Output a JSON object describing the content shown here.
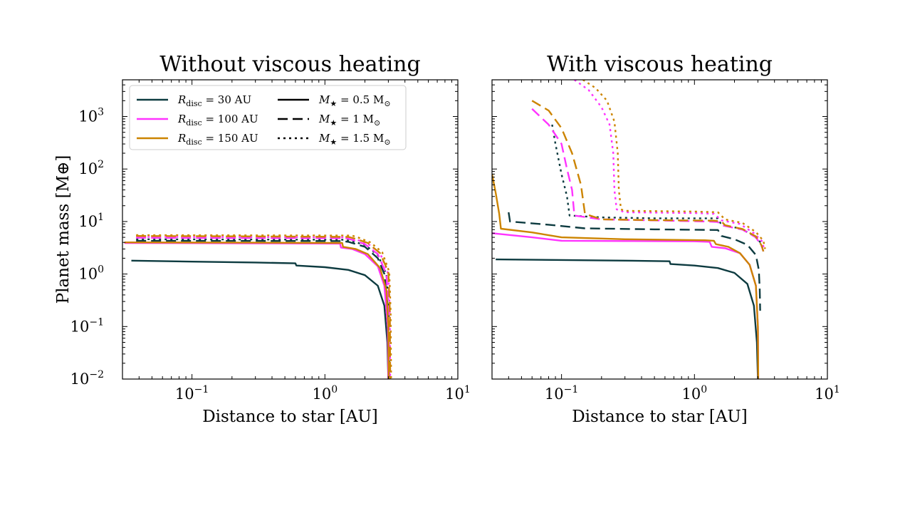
{
  "chart_data": [
    {
      "type": "line",
      "title": "Without viscous heating",
      "xlabel": "Distance to star [AU]",
      "ylabel": "Planet mass [M⊕]",
      "xscale": "log",
      "yscale": "log",
      "xlim": [
        0.03,
        10
      ],
      "ylim": [
        0.01,
        5000
      ],
      "xticks": [
        {
          "base": "10",
          "exp": "−1",
          "value": 0.1
        },
        {
          "base": "10",
          "exp": "0",
          "value": 1
        },
        {
          "base": "10",
          "exp": "1",
          "value": 10
        }
      ],
      "legend": {
        "location": "top-left",
        "disc_entries": [
          {
            "label": "R",
            "sub": "disc",
            "rest": " = 30 AU",
            "color": "#0d3b40"
          },
          {
            "label": "R",
            "sub": "disc",
            "rest": " = 100 AU",
            "color": "#ff33ff"
          },
          {
            "label": "R",
            "sub": "disc",
            "rest": " = 150 AU",
            "color": "#cc8400"
          }
        ],
        "star_entries": [
          {
            "label": "M",
            "sub": "★",
            "rest": " = 0.5 M",
            "sun": "⊙",
            "style": "solid"
          },
          {
            "label": "M",
            "sub": "★",
            "rest": " = 1 M",
            "sun": "⊙",
            "style": "dashed"
          },
          {
            "label": "M",
            "sub": "★",
            "rest": " = 1.5 M",
            "sun": "⊙",
            "style": "dotted"
          }
        ]
      },
      "series": [
        {
          "name": "R_disc=30 AU, M*=0.5",
          "color": "#0d3b40",
          "style": "solid",
          "points": [
            [
              0.035,
              1.8
            ],
            [
              0.1,
              1.72
            ],
            [
              0.3,
              1.66
            ],
            [
              0.6,
              1.6
            ],
            [
              0.61,
              1.45
            ],
            [
              1.0,
              1.35
            ],
            [
              1.5,
              1.2
            ],
            [
              2.0,
              0.95
            ],
            [
              2.5,
              0.6
            ],
            [
              2.8,
              0.25
            ],
            [
              2.95,
              0.05
            ],
            [
              3.0,
              0.01
            ]
          ]
        },
        {
          "name": "R_disc=30 AU, M*=1",
          "color": "#0d3b40",
          "style": "dashed",
          "points": [
            [
              0.038,
              4.3
            ],
            [
              0.3,
              4.28
            ],
            [
              1.35,
              4.25
            ],
            [
              1.5,
              4.1
            ],
            [
              2.0,
              3.3
            ],
            [
              2.5,
              2.0
            ],
            [
              2.8,
              1.0
            ],
            [
              2.95,
              0.3
            ],
            [
              3.02,
              0.03
            ],
            [
              3.05,
              0.01
            ]
          ]
        },
        {
          "name": "R_disc=30 AU, M*=1.5",
          "color": "#0d3b40",
          "style": "dotted",
          "points": [
            [
              0.038,
              4.6
            ],
            [
              0.3,
              4.55
            ],
            [
              1.4,
              4.5
            ],
            [
              1.6,
              4.2
            ],
            [
              2.0,
              3.6
            ],
            [
              2.5,
              2.3
            ],
            [
              2.9,
              1.0
            ],
            [
              3.02,
              0.2
            ],
            [
              3.05,
              0.01
            ]
          ]
        },
        {
          "name": "R_disc=100 AU, M*=0.5",
          "color": "#ff33ff",
          "style": "solid",
          "points": [
            [
              0.031,
              3.9
            ],
            [
              0.3,
              3.85
            ],
            [
              1.3,
              3.8
            ],
            [
              1.32,
              3.2
            ],
            [
              1.6,
              3.0
            ],
            [
              2.0,
              2.4
            ],
            [
              2.5,
              1.4
            ],
            [
              2.8,
              0.6
            ],
            [
              2.97,
              0.1
            ],
            [
              3.0,
              0.01
            ]
          ]
        },
        {
          "name": "R_disc=100 AU, M*=1",
          "color": "#ff33ff",
          "style": "dashed",
          "points": [
            [
              0.038,
              4.9
            ],
            [
              0.3,
              4.85
            ],
            [
              1.45,
              4.8
            ],
            [
              1.6,
              4.5
            ],
            [
              2.0,
              3.7
            ],
            [
              2.5,
              2.4
            ],
            [
              2.9,
              1.0
            ],
            [
              3.02,
              0.2
            ],
            [
              3.05,
              0.01
            ]
          ]
        },
        {
          "name": "R_disc=100 AU, M*=1.5",
          "color": "#ff33ff",
          "style": "dotted",
          "points": [
            [
              0.038,
              5.1
            ],
            [
              0.3,
              5.05
            ],
            [
              1.5,
              5.0
            ],
            [
              1.7,
              4.6
            ],
            [
              2.1,
              3.8
            ],
            [
              2.6,
              2.5
            ],
            [
              3.0,
              1.0
            ],
            [
              3.08,
              0.2
            ],
            [
              3.1,
              0.01
            ]
          ]
        },
        {
          "name": "R_disc=150 AU, M*=0.5",
          "color": "#cc8400",
          "style": "solid",
          "points": [
            [
              0.031,
              4.0
            ],
            [
              0.3,
              3.95
            ],
            [
              1.35,
              3.9
            ],
            [
              1.37,
              3.3
            ],
            [
              1.7,
              3.0
            ],
            [
              2.1,
              2.4
            ],
            [
              2.6,
              1.3
            ],
            [
              2.9,
              0.5
            ],
            [
              3.0,
              0.1
            ],
            [
              3.02,
              0.01
            ]
          ]
        },
        {
          "name": "R_disc=150 AU, M*=1",
          "color": "#cc8400",
          "style": "dashed",
          "points": [
            [
              0.038,
              5.3
            ],
            [
              0.3,
              5.2
            ],
            [
              1.5,
              5.1
            ],
            [
              1.7,
              4.7
            ],
            [
              2.1,
              3.9
            ],
            [
              2.6,
              2.5
            ],
            [
              3.0,
              1.1
            ],
            [
              3.08,
              0.2
            ],
            [
              3.1,
              0.01
            ]
          ]
        },
        {
          "name": "R_disc=150 AU, M*=1.5",
          "color": "#cc8400",
          "style": "dotted",
          "points": [
            [
              0.038,
              5.5
            ],
            [
              0.3,
              5.45
            ],
            [
              1.6,
              5.4
            ],
            [
              1.8,
              4.9
            ],
            [
              2.2,
              4.0
            ],
            [
              2.7,
              2.6
            ],
            [
              3.05,
              1.1
            ],
            [
              3.12,
              0.2
            ],
            [
              3.15,
              0.01
            ]
          ]
        }
      ]
    },
    {
      "type": "line",
      "title": "With viscous heating",
      "xlabel": "Distance to star [AU]",
      "ylabel": "",
      "xscale": "log",
      "yscale": "log",
      "xlim": [
        0.03,
        10
      ],
      "ylim": [
        0.01,
        5000
      ],
      "xticks": [
        {
          "base": "10",
          "exp": "−1",
          "value": 0.1
        },
        {
          "base": "10",
          "exp": "0",
          "value": 1
        },
        {
          "base": "10",
          "exp": "1",
          "value": 10
        }
      ],
      "series": [
        {
          "name": "R_disc=30 AU, M*=0.5",
          "color": "#0d3b40",
          "style": "solid",
          "points": [
            [
              0.032,
              1.9
            ],
            [
              0.1,
              1.85
            ],
            [
              0.3,
              1.8
            ],
            [
              0.65,
              1.75
            ],
            [
              0.66,
              1.55
            ],
            [
              1.0,
              1.45
            ],
            [
              1.5,
              1.3
            ],
            [
              2.0,
              1.05
            ],
            [
              2.5,
              0.65
            ],
            [
              2.8,
              0.25
            ],
            [
              2.95,
              0.05
            ],
            [
              3.0,
              0.01
            ]
          ]
        },
        {
          "name": "R_disc=30 AU, M*=1",
          "color": "#0d3b40",
          "style": "dashed",
          "points": [
            [
              0.04,
              15
            ],
            [
              0.041,
              10
            ],
            [
              0.08,
              8.7
            ],
            [
              0.15,
              7.4
            ],
            [
              0.5,
              7.1
            ],
            [
              1.5,
              6.9
            ],
            [
              1.6,
              5.3
            ],
            [
              2.0,
              4.6
            ],
            [
              2.5,
              3.6
            ],
            [
              2.9,
              2.3
            ],
            [
              3.05,
              1.2
            ],
            [
              3.1,
              0.5
            ],
            [
              3.12,
              0.2
            ]
          ]
        },
        {
          "name": "R_disc=30 AU, M*=1.5",
          "color": "#0d3b40",
          "style": "dotted",
          "points": [
            [
              0.085,
              700
            ],
            [
              0.09,
              300
            ],
            [
              0.1,
              80
            ],
            [
              0.11,
              30
            ],
            [
              0.115,
              13
            ],
            [
              0.2,
              12
            ],
            [
              0.5,
              11.5
            ],
            [
              1.5,
              11.5
            ],
            [
              1.6,
              8.5
            ],
            [
              2.2,
              7.4
            ],
            [
              2.8,
              5.4
            ],
            [
              3.2,
              3.8
            ],
            [
              3.3,
              2.7
            ]
          ]
        },
        {
          "name": "R_disc=100 AU, M*=0.5",
          "color": "#ff33ff",
          "style": "solid",
          "points": [
            [
              0.03,
              6
            ],
            [
              0.06,
              5.0
            ],
            [
              0.1,
              4.3
            ],
            [
              0.3,
              4.25
            ],
            [
              1.0,
              4.2
            ],
            [
              1.3,
              4.1
            ],
            [
              1.35,
              3.3
            ],
            [
              1.7,
              3.1
            ],
            [
              2.2,
              2.5
            ],
            [
              2.6,
              1.5
            ],
            [
              2.9,
              0.6
            ],
            [
              3.0,
              0.1
            ],
            [
              3.02,
              0.01
            ]
          ]
        },
        {
          "name": "R_disc=100 AU, M*=1",
          "color": "#ff33ff",
          "style": "dashed",
          "points": [
            [
              0.06,
              1400
            ],
            [
              0.08,
              700
            ],
            [
              0.1,
              300
            ],
            [
              0.11,
              100
            ],
            [
              0.12,
              40
            ],
            [
              0.125,
              13
            ],
            [
              0.2,
              11
            ],
            [
              0.5,
              10.5
            ],
            [
              1.3,
              10
            ],
            [
              1.5,
              9.8
            ],
            [
              1.6,
              8.5
            ],
            [
              2.3,
              7.0
            ],
            [
              2.9,
              5.0
            ],
            [
              3.2,
              3.4
            ],
            [
              3.3,
              2.7
            ]
          ]
        },
        {
          "name": "R_disc=100 AU, M*=1.5",
          "color": "#ff33ff",
          "style": "dotted",
          "points": [
            [
              0.125,
              5000
            ],
            [
              0.16,
              3200
            ],
            [
              0.2,
              1500
            ],
            [
              0.23,
              700
            ],
            [
              0.245,
              200
            ],
            [
              0.25,
              40
            ],
            [
              0.26,
              17
            ],
            [
              0.3,
              15
            ],
            [
              1.0,
              14.5
            ],
            [
              1.4,
              14
            ],
            [
              1.6,
              10.5
            ],
            [
              2.2,
              9.0
            ],
            [
              2.8,
              6.0
            ],
            [
              3.2,
              4.3
            ],
            [
              3.35,
              3.0
            ]
          ]
        },
        {
          "name": "R_disc=150 AU, M*=0.5",
          "color": "#cc8400",
          "style": "solid",
          "points": [
            [
              0.03,
              80
            ],
            [
              0.032,
              35
            ],
            [
              0.034,
              14
            ],
            [
              0.035,
              7.3
            ],
            [
              0.06,
              6.2
            ],
            [
              0.1,
              5.0
            ],
            [
              0.3,
              4.6
            ],
            [
              1.2,
              4.4
            ],
            [
              1.4,
              4.3
            ],
            [
              1.45,
              3.7
            ],
            [
              1.8,
              3.3
            ],
            [
              2.2,
              2.5
            ],
            [
              2.6,
              1.5
            ],
            [
              2.9,
              0.6
            ],
            [
              3.0,
              0.1
            ],
            [
              3.02,
              0.01
            ]
          ]
        },
        {
          "name": "R_disc=150 AU, M*=1",
          "color": "#cc8400",
          "style": "dashed",
          "points": [
            [
              0.06,
              2000
            ],
            [
              0.08,
              1300
            ],
            [
              0.1,
              600
            ],
            [
              0.12,
              200
            ],
            [
              0.14,
              50
            ],
            [
              0.15,
              14
            ],
            [
              0.2,
              11
            ],
            [
              0.5,
              10.6
            ],
            [
              1.4,
              10.4
            ],
            [
              1.6,
              10.0
            ],
            [
              1.7,
              8.5
            ],
            [
              2.3,
              7.2
            ],
            [
              2.9,
              5.2
            ],
            [
              3.2,
              3.5
            ],
            [
              3.3,
              2.7
            ]
          ]
        },
        {
          "name": "R_disc=150 AU, M*=1.5",
          "color": "#cc8400",
          "style": "dotted",
          "points": [
            [
              0.145,
              5000
            ],
            [
              0.18,
              3500
            ],
            [
              0.22,
              2000
            ],
            [
              0.25,
              800
            ],
            [
              0.265,
              200
            ],
            [
              0.27,
              40
            ],
            [
              0.28,
              17
            ],
            [
              0.3,
              16
            ],
            [
              1.0,
              15.5
            ],
            [
              1.5,
              15
            ],
            [
              1.7,
              11
            ],
            [
              2.3,
              9.4
            ],
            [
              2.9,
              6.3
            ],
            [
              3.3,
              4.3
            ],
            [
              3.4,
              3.0
            ]
          ]
        }
      ]
    }
  ]
}
